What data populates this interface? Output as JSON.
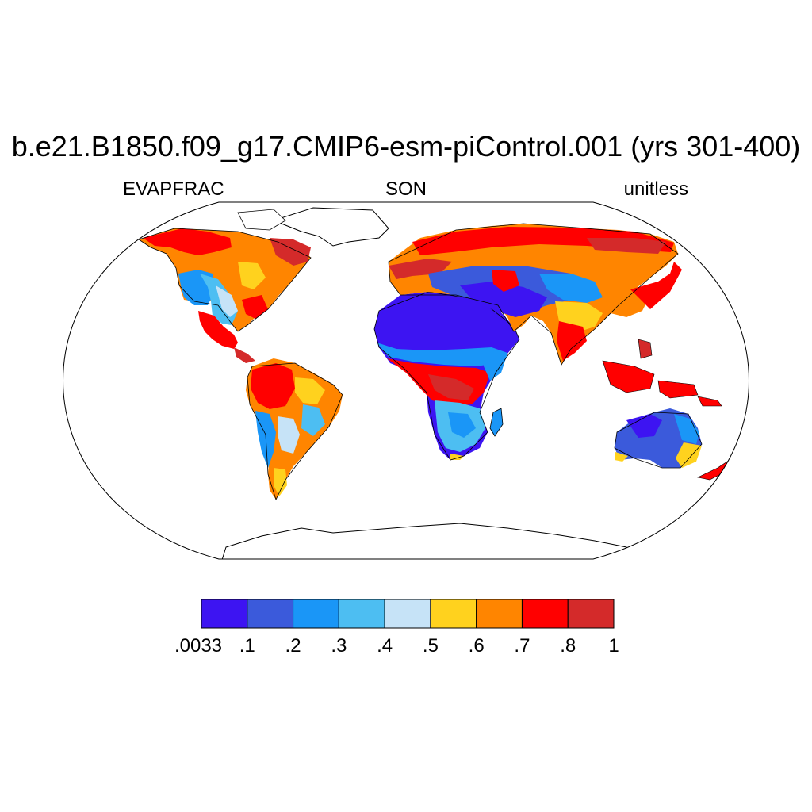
{
  "title": "b.e21.B1850.f09_g17.CMIP6-esm-piControl.001 (yrs 301-400)",
  "subtitle_left": "EVAPFRAC",
  "subtitle_center": "SON",
  "subtitle_right": "unitless",
  "colorbar": {
    "colors": [
      "#3d14f2",
      "#3b5adb",
      "#1a96f7",
      "#4dbef2",
      "#c6e3f7",
      "#ffd21e",
      "#ff8500",
      "#ff0000",
      "#d42a2a"
    ],
    "labels": [
      ".0033",
      ".1",
      ".2",
      ".3",
      ".4",
      ".5",
      ".6",
      ".7",
      ".8",
      "1"
    ]
  }
}
